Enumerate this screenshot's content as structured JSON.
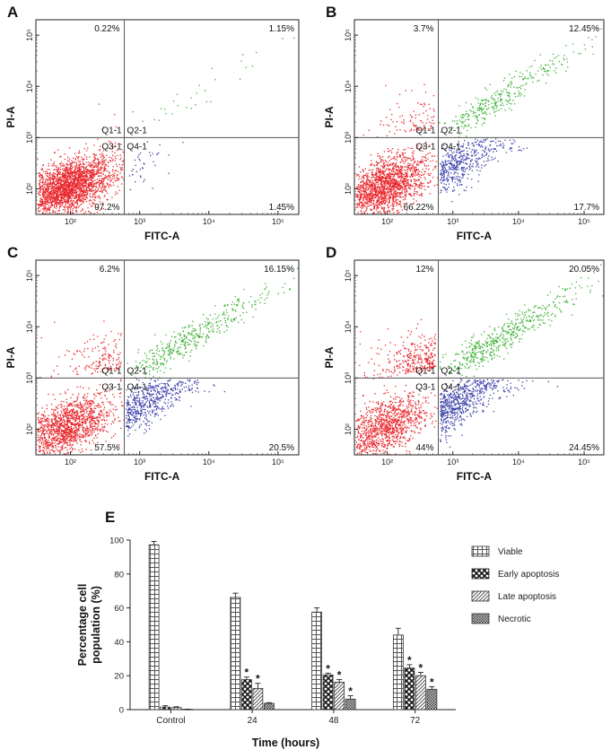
{
  "chart_data": [
    {
      "type": "scatter",
      "panel": "A",
      "xlabel": "FITC-A",
      "ylabel": "PI-A",
      "x_ticks": [
        "10²",
        "10³",
        "10⁴",
        "10⁵"
      ],
      "y_ticks": [
        "10²",
        "10³",
        "10⁴",
        "10⁵"
      ],
      "gate": {
        "x": 600,
        "y": 1000
      },
      "quadrant_labels": [
        "Q1-1",
        "Q2-1",
        "Q3-1",
        "Q4-1"
      ],
      "percentages": {
        "Q1": "0.22%",
        "Q2": "1.15%",
        "Q3": "97.2%",
        "Q4": "1.45%"
      },
      "colors": {
        "Q1": "#e8262c",
        "Q2": "#3cb034",
        "Q3": "#e8262c",
        "Q4": "#3b3fa8"
      }
    },
    {
      "type": "scatter",
      "panel": "B",
      "xlabel": "FITC-A",
      "ylabel": "PI-A",
      "x_ticks": [
        "10²",
        "10³",
        "10⁴",
        "10⁵"
      ],
      "y_ticks": [
        "10²",
        "10³",
        "10⁴",
        "10⁵"
      ],
      "gate": {
        "x": 600,
        "y": 1000
      },
      "quadrant_labels": [
        "Q1-1",
        "Q2-1",
        "Q3-1",
        "Q4-1"
      ],
      "percentages": {
        "Q1": "3.7%",
        "Q2": "12.45%",
        "Q3": "66.22%",
        "Q4": "17.7%"
      },
      "colors": {
        "Q1": "#e8262c",
        "Q2": "#3cb034",
        "Q3": "#e8262c",
        "Q4": "#3b3fa8"
      }
    },
    {
      "type": "scatter",
      "panel": "C",
      "xlabel": "FITC-A",
      "ylabel": "PI-A",
      "x_ticks": [
        "10²",
        "10³",
        "10⁴",
        "10⁵"
      ],
      "y_ticks": [
        "10²",
        "10³",
        "10⁴",
        "10⁵"
      ],
      "gate": {
        "x": 600,
        "y": 1000
      },
      "quadrant_labels": [
        "Q1-1",
        "Q2-1",
        "Q3-1",
        "Q4-1"
      ],
      "percentages": {
        "Q1": "6.2%",
        "Q2": "16.15%",
        "Q3": "57.5%",
        "Q4": "20.5%"
      },
      "colors": {
        "Q1": "#e8262c",
        "Q2": "#3cb034",
        "Q3": "#e8262c",
        "Q4": "#3b3fa8"
      }
    },
    {
      "type": "scatter",
      "panel": "D",
      "xlabel": "FITC-A",
      "ylabel": "PI-A",
      "x_ticks": [
        "10²",
        "10³",
        "10⁴",
        "10⁵"
      ],
      "y_ticks": [
        "10²",
        "10³",
        "10⁴",
        "10⁵"
      ],
      "gate": {
        "x": 600,
        "y": 1000
      },
      "quadrant_labels": [
        "Q1-1",
        "Q2-1",
        "Q3-1",
        "Q4-1"
      ],
      "percentages": {
        "Q1": "12%",
        "Q2": "20.05%",
        "Q3": "44%",
        "Q4": "24.45%"
      },
      "colors": {
        "Q1": "#e8262c",
        "Q2": "#3cb034",
        "Q3": "#e8262c",
        "Q4": "#3b3fa8"
      }
    },
    {
      "type": "bar",
      "panel": "E",
      "xlabel": "Time (hours)",
      "ylabel": "Percentage cell population (%)",
      "categories": [
        "Control",
        "24",
        "48",
        "72"
      ],
      "ylim": [
        0,
        100
      ],
      "y_ticks": [
        0,
        20,
        40,
        60,
        80,
        100
      ],
      "legend": "right",
      "significance_marker": "*",
      "series": [
        {
          "name": "Viable",
          "values": [
            97.2,
            66.2,
            57.5,
            44
          ],
          "errors": [
            2,
            2.5,
            2.5,
            4
          ],
          "significant": [
            false,
            false,
            false,
            false
          ]
        },
        {
          "name": "Early apoptosis",
          "values": [
            1.5,
            17.7,
            20.5,
            24.5
          ],
          "errors": [
            0.8,
            1.5,
            1,
            2
          ],
          "significant": [
            false,
            true,
            true,
            true
          ]
        },
        {
          "name": "Late apoptosis",
          "values": [
            1.2,
            12.5,
            16.2,
            20
          ],
          "errors": [
            0.5,
            3,
            1.5,
            2
          ],
          "significant": [
            false,
            true,
            true,
            true
          ]
        },
        {
          "name": "Necrotic",
          "values": [
            0.2,
            3.7,
            6.2,
            12
          ],
          "errors": [
            0.1,
            0.4,
            2,
            1.5
          ],
          "significant": [
            false,
            false,
            true,
            true
          ]
        }
      ]
    }
  ]
}
